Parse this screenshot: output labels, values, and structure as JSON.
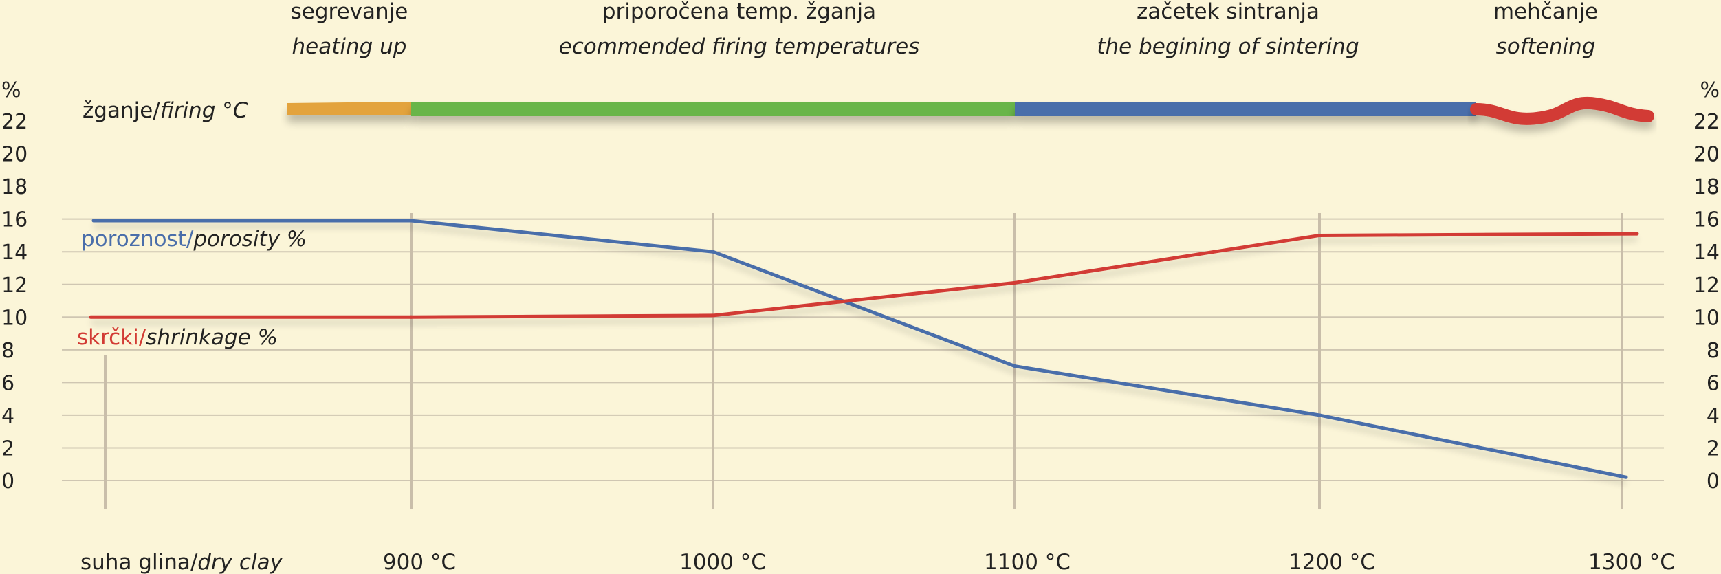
{
  "chart_data": {
    "type": "line",
    "x_categories": [
      "suha glina/dry clay",
      "900 °C",
      "1000 °C",
      "1100 °C",
      "1200 °C",
      "1300 °C"
    ],
    "x_tick_labels": [
      {
        "main": "suha glina/",
        "italic": "dry clay"
      },
      {
        "main": "900 °C",
        "italic": ""
      },
      {
        "main": "1000 °C",
        "italic": ""
      },
      {
        "main": "1100 °C",
        "italic": ""
      },
      {
        "main": "1200 °C",
        "italic": ""
      },
      {
        "main": "1300 °C",
        "italic": ""
      }
    ],
    "y_unit_label": "%",
    "ylim": [
      0,
      22
    ],
    "y_ticks": [
      0,
      2,
      4,
      6,
      8,
      10,
      12,
      14,
      16,
      18,
      20,
      22
    ],
    "grid": true,
    "series": [
      {
        "name": "poroznost/porosity %",
        "label_main": "poroznost/",
        "label_italic": "porosity %",
        "color": "#4a6eaa",
        "points": [
          {
            "x": "suha glina/dry clay",
            "y": 15.9
          },
          {
            "x": "900 °C",
            "y": 15.9
          },
          {
            "x": "1000 °C",
            "y": 14.0
          },
          {
            "x": "1100 °C",
            "y": 7.0
          },
          {
            "x": "1200 °C",
            "y": 4.0
          },
          {
            "x": "1300 °C",
            "y": 0.2
          }
        ]
      },
      {
        "name": "skrčki/shrinkage %",
        "label_main": "skrčki/",
        "label_italic": "shrinkage %",
        "color": "#d23b34",
        "points": [
          {
            "x": "suha glina/dry clay",
            "y": 10.0
          },
          {
            "x": "900 °C",
            "y": 10.0
          },
          {
            "x": "1000 °C",
            "y": 10.1
          },
          {
            "x": "1100 °C",
            "y": 12.1
          },
          {
            "x": "1200 °C",
            "y": 15.0
          },
          {
            "x": "1300 °C",
            "y": 15.1
          }
        ]
      }
    ],
    "firing_bar": {
      "label_main": "žganje/",
      "label_italic": "firing °C",
      "segments": [
        {
          "title": "segrevanje",
          "subtitle": "heating up",
          "from": "suha glina/dry clay",
          "to": "900 °C",
          "color": "#e3a33c"
        },
        {
          "title": "priporočena temp. žganja",
          "subtitle": "ecommended firing temperatures",
          "from": "900 °C",
          "to": "1100 °C",
          "color": "#69b548"
        },
        {
          "title": "začetek sintranja",
          "subtitle": "the begining of sintering",
          "from": "1100 °C",
          "to": "1250 °C",
          "color": "#4a6eaa"
        },
        {
          "title": "mehčanje",
          "subtitle": "softening",
          "from": "1250 °C",
          "to": "1300 °C",
          "color": "#d23b34"
        }
      ]
    }
  }
}
